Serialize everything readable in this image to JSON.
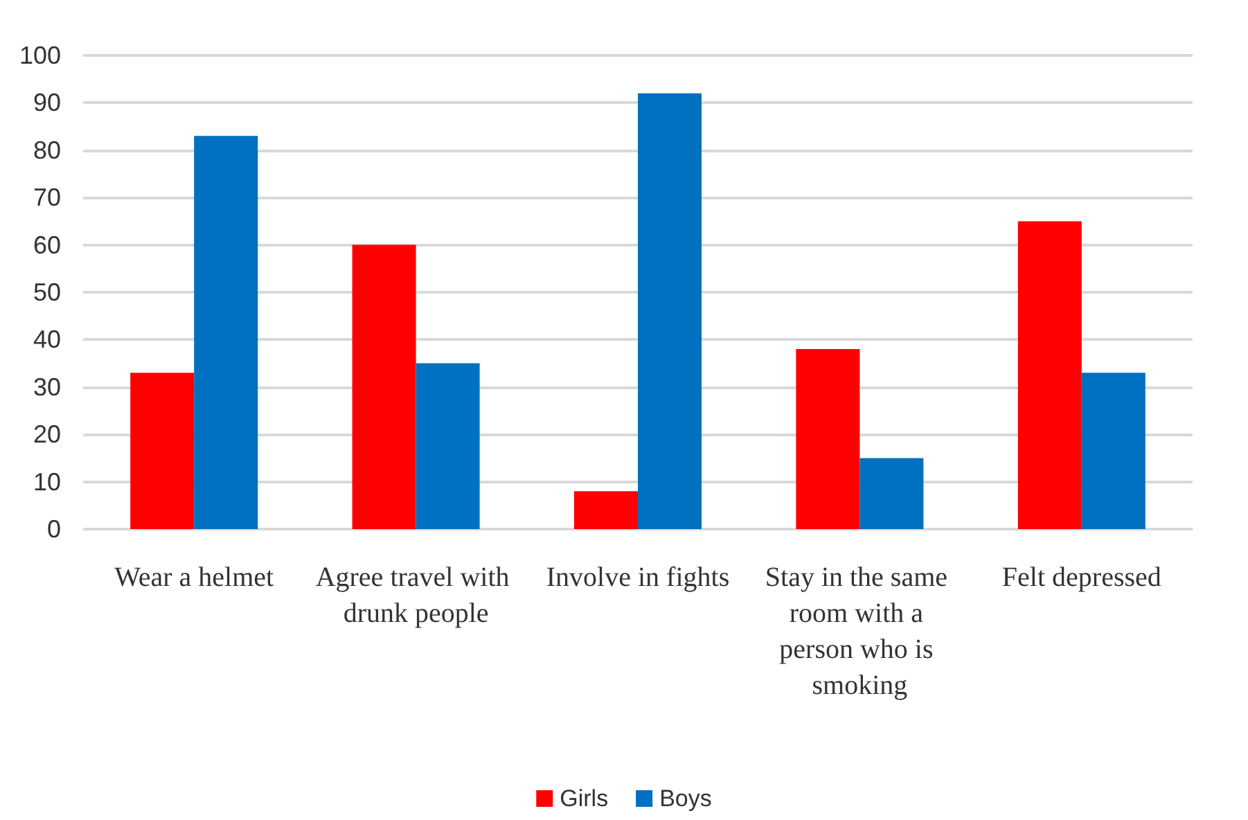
{
  "chart_data": {
    "type": "bar",
    "categories": [
      "Wear a helmet",
      "Agree travel with drunk people",
      "Involve in fights",
      "Stay in the same room with a person who is smoking",
      "Felt depressed"
    ],
    "series": [
      {
        "name": "Girls",
        "color": "#ff0000",
        "values": [
          33,
          60,
          8,
          38,
          65
        ]
      },
      {
        "name": "Boys",
        "color": "#0070c0",
        "values": [
          83,
          35,
          92,
          15,
          33
        ]
      }
    ],
    "ylim": [
      0,
      100
    ],
    "yticks": [
      0,
      10,
      20,
      30,
      40,
      50,
      60,
      70,
      80,
      90,
      100
    ],
    "grid": "y",
    "legend": "bottom"
  }
}
